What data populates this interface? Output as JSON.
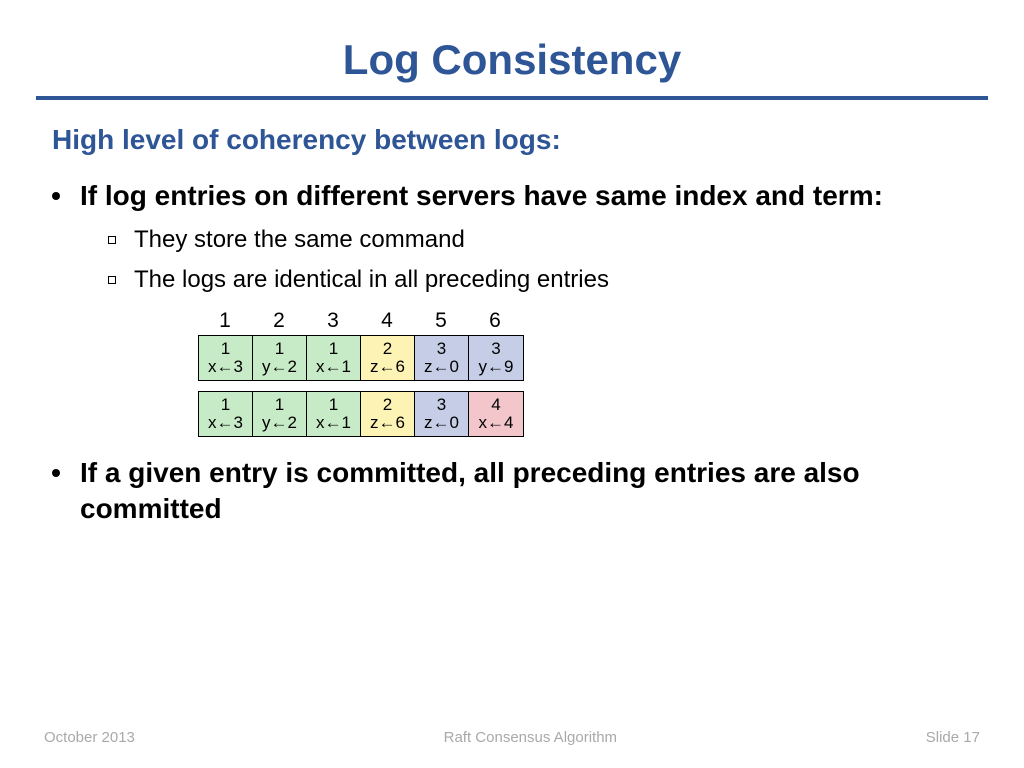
{
  "title": "Log Consistency",
  "subheading": "High level of coherency between logs:",
  "bullets": [
    "If log entries on different servers have same index and term:",
    "If a given entry is committed, all preceding entries are also committed"
  ],
  "sub_bullets": [
    "They store the same command",
    "The logs are identical in all preceding entries"
  ],
  "indices": [
    "1",
    "2",
    "3",
    "4",
    "5",
    "6"
  ],
  "colors": {
    "green": "#c7eac7",
    "yellow": "#fdf3b5",
    "blue": "#c5cee6",
    "pink": "#f3c6cb",
    "title": "#2e5596",
    "footer": "#a9a9a9"
  },
  "log_rows": [
    [
      {
        "term": "1",
        "cmd": "x←3",
        "color": "green"
      },
      {
        "term": "1",
        "cmd": "y←2",
        "color": "green"
      },
      {
        "term": "1",
        "cmd": "x←1",
        "color": "green"
      },
      {
        "term": "2",
        "cmd": "z←6",
        "color": "yellow"
      },
      {
        "term": "3",
        "cmd": "z←0",
        "color": "blue"
      },
      {
        "term": "3",
        "cmd": "y←9",
        "color": "blue"
      }
    ],
    [
      {
        "term": "1",
        "cmd": "x←3",
        "color": "green"
      },
      {
        "term": "1",
        "cmd": "y←2",
        "color": "green"
      },
      {
        "term": "1",
        "cmd": "x←1",
        "color": "green"
      },
      {
        "term": "2",
        "cmd": "z←6",
        "color": "yellow"
      },
      {
        "term": "3",
        "cmd": "z←0",
        "color": "blue"
      },
      {
        "term": "4",
        "cmd": "x←4",
        "color": "pink"
      }
    ]
  ],
  "footer": {
    "left": "October 2013",
    "center": "Raft Consensus Algorithm",
    "right": "Slide 17"
  }
}
